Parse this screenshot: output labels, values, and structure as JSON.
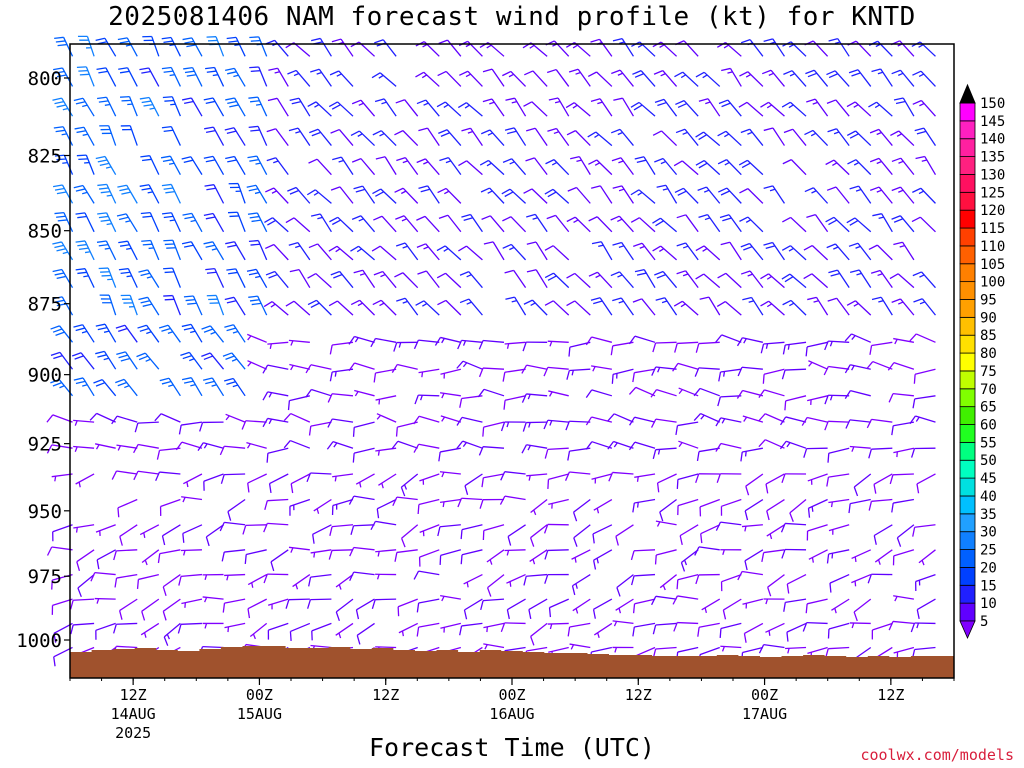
{
  "title": "2025081406 NAM forecast wind profile (kt) for KNTD",
  "credit": "coolwx.com/models",
  "chart_data": {
    "type": "wind_barb_time_height",
    "title": "2025081406 NAM forecast wind profile (kt) for KNTD",
    "xlabel": "Forecast Time (UTC)",
    "ylabel": "",
    "y_axis": {
      "scale": "pressure",
      "ticks": [
        800,
        825,
        850,
        875,
        900,
        925,
        950,
        975,
        1000
      ],
      "range_hpa": [
        785,
        1014
      ]
    },
    "x_axis": {
      "range_hours_from_init": [
        0,
        84
      ],
      "ticks": [
        {
          "label": "12Z",
          "date": "14AUG",
          "year": "2025"
        },
        {
          "label": "00Z",
          "date": "15AUG",
          "year": ""
        },
        {
          "label": "12Z",
          "date": "",
          "year": ""
        },
        {
          "label": "00Z",
          "date": "16AUG",
          "year": ""
        },
        {
          "label": "12Z",
          "date": "",
          "year": ""
        },
        {
          "label": "00Z",
          "date": "17AUG",
          "year": ""
        },
        {
          "label": "12Z",
          "date": "",
          "year": ""
        }
      ],
      "tick_hours": [
        6,
        18,
        30,
        42,
        54,
        66,
        78
      ]
    },
    "colorbar": {
      "levels": [
        5,
        10,
        15,
        20,
        25,
        30,
        35,
        40,
        45,
        50,
        55,
        60,
        65,
        70,
        75,
        80,
        85,
        90,
        95,
        100,
        105,
        110,
        115,
        120,
        125,
        130,
        135,
        140,
        145,
        150
      ],
      "colors": [
        "#8000ff",
        "#6000ff",
        "#2020ff",
        "#0040ff",
        "#0060ff",
        "#1080ff",
        "#20a0ff",
        "#00c0ff",
        "#00e0e0",
        "#00ffc0",
        "#00ff80",
        "#20ff20",
        "#40f000",
        "#80ff00",
        "#c0ff00",
        "#ffff00",
        "#ffe000",
        "#ffc000",
        "#ffa000",
        "#ff9000",
        "#ff8000",
        "#ff6000",
        "#ff4000",
        "#ff0000",
        "#ff1040",
        "#ff1060",
        "#ff2080",
        "#ff20a0",
        "#ff20c0",
        "#ff00ff"
      ]
    },
    "terrain_color": "#a0522d",
    "wind_fields": [
      {
        "layer": "800-875 hPa",
        "period": "12Z 14AUG - 00Z 15AUG",
        "direction_deg": 330,
        "speed_kt": 30
      },
      {
        "layer": "800-875 hPa",
        "period": "15AUG - 17AUG",
        "direction_deg": 320,
        "speed_kt": 15
      },
      {
        "layer": "900-975 hPa",
        "period": "14AUG - 17AUG",
        "direction_deg": 270,
        "speed_kt": 10
      },
      {
        "layer": "975-1000 hPa",
        "period": "14AUG - 17AUG",
        "direction_deg": 240,
        "speed_kt": 8
      }
    ]
  }
}
